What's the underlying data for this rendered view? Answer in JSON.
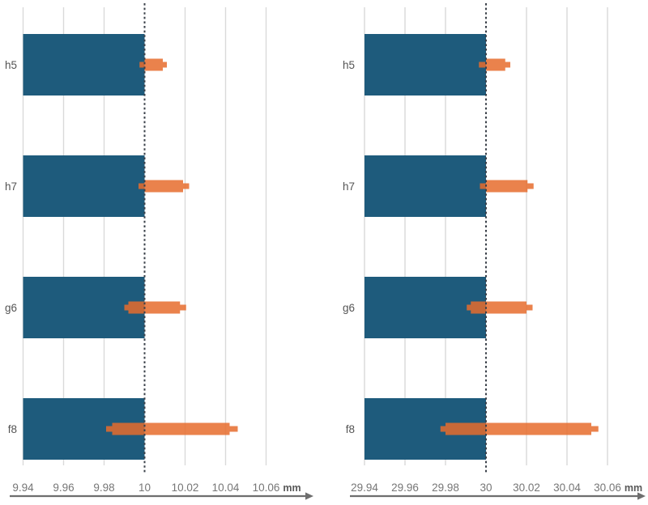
{
  "figure": {
    "background": "#FFFFFF",
    "unit_label": "mm",
    "categories": [
      "h5",
      "h7",
      "g6",
      "f8"
    ],
    "colors": {
      "nominal_bar": "#1E5B7C",
      "tolerance_marker": "#E66C2D",
      "tolerance_marker_opacity": 0.85,
      "gridline": "#D9D9D9",
      "reference_line": "#3A4049",
      "axis_line": "#6E6E6E",
      "tick_label": "#767676",
      "category_label": "#545454",
      "unit_label_color": "#595959"
    }
  },
  "chart_data": [
    {
      "type": "bar",
      "orientation": "horizontal",
      "nominal": 10,
      "unit": "mm",
      "grid": true,
      "legend": "none",
      "categories": [
        "h5",
        "h7",
        "g6",
        "f8"
      ],
      "xticks": [
        9.94,
        9.96,
        9.98,
        10,
        10.02,
        10.04,
        10.06
      ],
      "xtick_labels": [
        "9.94",
        "9.96",
        "9.98",
        "10",
        "10.02",
        "10.04",
        "10.06"
      ],
      "xlim": [
        9.936,
        10.084
      ],
      "reference_line_x": 10,
      "rows": [
        {
          "label": "h5",
          "bar": [
            9.94,
            10
          ],
          "box": [
            10.0,
            10.009
          ],
          "whisker": [
            9.9975,
            10.011
          ]
        },
        {
          "label": "h7",
          "bar": [
            9.94,
            10
          ],
          "box": [
            10.0,
            10.019
          ],
          "whisker": [
            9.997,
            10.022
          ]
        },
        {
          "label": "g6",
          "bar": [
            9.94,
            10
          ],
          "box": [
            9.992,
            10.0175
          ],
          "whisker": [
            9.99,
            10.0205
          ]
        },
        {
          "label": "f8",
          "bar": [
            9.94,
            10
          ],
          "box": [
            9.984,
            10.042
          ],
          "whisker": [
            9.981,
            10.046
          ]
        }
      ]
    },
    {
      "type": "bar",
      "orientation": "horizontal",
      "nominal": 30,
      "unit": "mm",
      "grid": true,
      "legend": "none",
      "categories": [
        "h5",
        "h7",
        "g6",
        "f8"
      ],
      "xticks": [
        29.94,
        29.96,
        29.98,
        30,
        30.02,
        30.04,
        30.06
      ],
      "xtick_labels": [
        "29.94",
        "29.96",
        "29.98",
        "30",
        "30.02",
        "30.04",
        "30.06"
      ],
      "xlim": [
        29.936,
        30.084
      ],
      "reference_line_x": 30,
      "rows": [
        {
          "label": "h5",
          "bar": [
            29.94,
            30
          ],
          "box": [
            30.0,
            30.0095
          ],
          "whisker": [
            29.9965,
            30.012
          ]
        },
        {
          "label": "h7",
          "bar": [
            29.94,
            30
          ],
          "box": [
            30.0,
            30.0205
          ],
          "whisker": [
            29.997,
            30.0235
          ]
        },
        {
          "label": "g6",
          "bar": [
            29.94,
            30
          ],
          "box": [
            29.9925,
            30.02
          ],
          "whisker": [
            29.9905,
            30.023
          ]
        },
        {
          "label": "f8",
          "bar": [
            29.94,
            30
          ],
          "box": [
            29.98,
            30.052
          ],
          "whisker": [
            29.9775,
            30.0555
          ]
        }
      ]
    }
  ]
}
